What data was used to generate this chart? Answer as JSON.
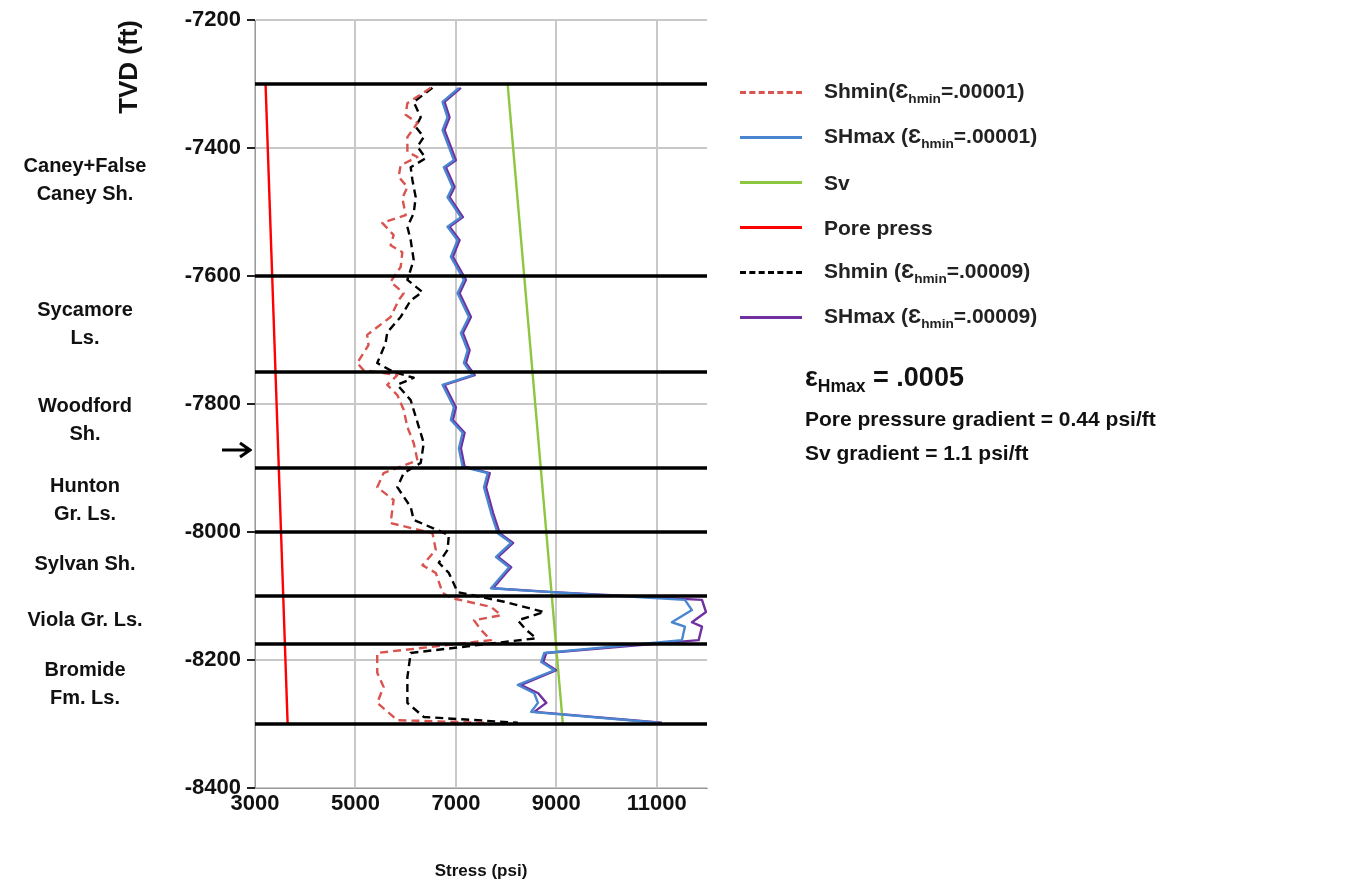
{
  "chart_data": {
    "type": "line",
    "xlabel": "Stress (psi)",
    "ylabel": "TVD (ft)",
    "xlim": [
      3000,
      12000
    ],
    "xticks": [
      3000,
      5000,
      7000,
      9000,
      11000
    ],
    "ylim": [
      -8400,
      -7200
    ],
    "yticks": [
      -7200,
      -7400,
      -7600,
      -7800,
      -8000,
      -8200,
      -8400
    ],
    "grid": true,
    "legend": "right",
    "marker": "none",
    "series": [
      {
        "name": "Shmin(Ɛ$_{hmin}$=.00001)",
        "color": "#d9534f",
        "line_style": "dashed",
        "x": [
          6500,
          6034,
          6000,
          6234,
          6034,
          6034,
          6234,
          5900,
          5860,
          6034,
          5934,
          6000,
          5534,
          5760,
          5700,
          5934,
          5900,
          5700,
          5960,
          5860,
          5700,
          5234,
          5260,
          5034,
          5160,
          5834,
          5634,
          5834,
          5960,
          6034,
          6160,
          6234,
          5560,
          5434,
          5760,
          5700,
          6534,
          6600,
          6334,
          6600,
          6734,
          6900,
          7700,
          7900,
          7360,
          7500,
          7700,
          5434,
          5434,
          5560,
          5434,
          5834,
          7560
        ],
        "values": [
          -7306,
          -7330,
          -7348,
          -7361,
          -7383,
          -7406,
          -7414,
          -7427,
          -7445,
          -7461,
          -7478,
          -7505,
          -7517,
          -7536,
          -7552,
          -7563,
          -7586,
          -7609,
          -7627,
          -7638,
          -7664,
          -7692,
          -7708,
          -7736,
          -7747,
          -7755,
          -7770,
          -7786,
          -7809,
          -7836,
          -7861,
          -7888,
          -7908,
          -7930,
          -7950,
          -7986,
          -8002,
          -8028,
          -8052,
          -8064,
          -8095,
          -8103,
          -8117,
          -8130,
          -8138,
          -8153,
          -8169,
          -8189,
          -8220,
          -8242,
          -8267,
          -8294,
          -8298
        ]
      },
      {
        "name": "SHmax (Ɛ$_{hmin}$=.00001)",
        "color": "#4a86d0",
        "line_style": "solid",
        "x": [
          7060,
          6734,
          6834,
          6734,
          6960,
          6760,
          6934,
          6834,
          7100,
          6834,
          7034,
          6900,
          7160,
          7034,
          7260,
          7100,
          7234,
          7160,
          7334,
          6734,
          6960,
          6900,
          7134,
          7060,
          7134,
          7634,
          7560,
          7700,
          7834,
          8100,
          7800,
          8060,
          7700,
          8900,
          11560,
          11700,
          11300,
          11560,
          11500,
          8760,
          8700,
          8960,
          8234,
          8560,
          8634,
          8500,
          11034
        ],
        "values": [
          -7306,
          -7328,
          -7352,
          -7372,
          -7419,
          -7430,
          -7461,
          -7477,
          -7508,
          -7523,
          -7544,
          -7570,
          -7606,
          -7627,
          -7664,
          -7689,
          -7716,
          -7736,
          -7755,
          -7770,
          -7805,
          -7825,
          -7845,
          -7869,
          -7898,
          -7908,
          -7930,
          -7970,
          -8002,
          -8017,
          -8039,
          -8055,
          -8088,
          -8094,
          -8106,
          -8122,
          -8141,
          -8148,
          -8169,
          -8189,
          -8203,
          -8216,
          -8239,
          -8252,
          -8267,
          -8281,
          -8298
        ]
      },
      {
        "name": "Sv",
        "color": "#8dc63f",
        "line_style": "solid",
        "x": [
          8030,
          9130
        ],
        "values": [
          -7300,
          -8300
        ]
      },
      {
        "name": "Pore press",
        "color": "#ff0000",
        "line_style": "solid",
        "x": [
          3210,
          3650
        ],
        "values": [
          -7300,
          -8300
        ]
      },
      {
        "name": "Shmin (Ɛ$_{hmin}$=.00009)",
        "color": "#000000",
        "line_style": "dashed",
        "x": [
          6534,
          6160,
          6300,
          6200,
          6360,
          6234,
          6400,
          6100,
          6134,
          6200,
          6160,
          6034,
          6100,
          6160,
          6034,
          6334,
          6100,
          5900,
          5634,
          5600,
          5434,
          5760,
          6160,
          5834,
          6100,
          6200,
          6360,
          6300,
          5960,
          5834,
          6100,
          6160,
          6860,
          6834,
          6660,
          6860,
          7034,
          7960,
          8760,
          8234,
          8400,
          8600,
          6100,
          6034,
          6034,
          6360,
          8234
        ],
        "values": [
          -7306,
          -7328,
          -7352,
          -7367,
          -7383,
          -7398,
          -7416,
          -7430,
          -7450,
          -7477,
          -7502,
          -7523,
          -7544,
          -7575,
          -7606,
          -7625,
          -7638,
          -7664,
          -7688,
          -7705,
          -7736,
          -7750,
          -7759,
          -7770,
          -7794,
          -7820,
          -7861,
          -7892,
          -7908,
          -7930,
          -7961,
          -7981,
          -8005,
          -8028,
          -8048,
          -8064,
          -8094,
          -8109,
          -8125,
          -8138,
          -8153,
          -8166,
          -8189,
          -8227,
          -8267,
          -8289,
          -8298
        ]
      },
      {
        "name": "SHmax (Ɛ$_{hmin}$=.00009)",
        "color": "#7030a0",
        "line_style": "solid",
        "x": [
          7100,
          6774,
          6874,
          6774,
          7000,
          6800,
          6974,
          6874,
          7140,
          6874,
          7074,
          6940,
          7200,
          7074,
          7300,
          7140,
          7274,
          7200,
          7374,
          6774,
          7000,
          6940,
          7174,
          7100,
          7174,
          7674,
          7600,
          7740,
          7874,
          8140,
          7840,
          8100,
          7740,
          8940,
          11900,
          11980,
          11700,
          11900,
          11834,
          8800,
          8740,
          9000,
          8300,
          8640,
          8800,
          8560,
          11100
        ],
        "values": [
          -7306,
          -7328,
          -7352,
          -7372,
          -7419,
          -7430,
          -7461,
          -7477,
          -7508,
          -7523,
          -7544,
          -7570,
          -7606,
          -7627,
          -7664,
          -7689,
          -7716,
          -7736,
          -7755,
          -7770,
          -7805,
          -7825,
          -7845,
          -7869,
          -7898,
          -7908,
          -7930,
          -7970,
          -8002,
          -8017,
          -8039,
          -8055,
          -8088,
          -8094,
          -8106,
          -8125,
          -8141,
          -8148,
          -8169,
          -8189,
          -8203,
          -8216,
          -8239,
          -8252,
          -8267,
          -8281,
          -8298
        ]
      }
    ],
    "ref_lines": [
      {
        "axis": "y",
        "value": -7300,
        "color": "#000000"
      },
      {
        "axis": "y",
        "value": -7600,
        "color": "#000000"
      },
      {
        "axis": "y",
        "value": -7750,
        "color": "#000000"
      },
      {
        "axis": "y",
        "value": -7900,
        "color": "#000000"
      },
      {
        "axis": "y",
        "value": -8000,
        "color": "#000000"
      },
      {
        "axis": "y",
        "value": -8100,
        "color": "#000000"
      },
      {
        "axis": "y",
        "value": -8175,
        "color": "#000000"
      },
      {
        "axis": "y",
        "value": -8300,
        "color": "#000000"
      }
    ],
    "annotations": [
      "Caney+False\nCaney Sh.",
      "Sycamore\nLs.",
      "Woodford\nSh.",
      "Hunton\nGr. Ls.",
      "Sylvan Sh.",
      "Viola Gr. Ls.",
      "Bromide\nFm. Ls.",
      "ε$_{Hmax}$ = .0005",
      "Pore pressure gradient = 0.44 psi/ft",
      "Sv gradient = 1.1 psi/ft"
    ]
  }
}
